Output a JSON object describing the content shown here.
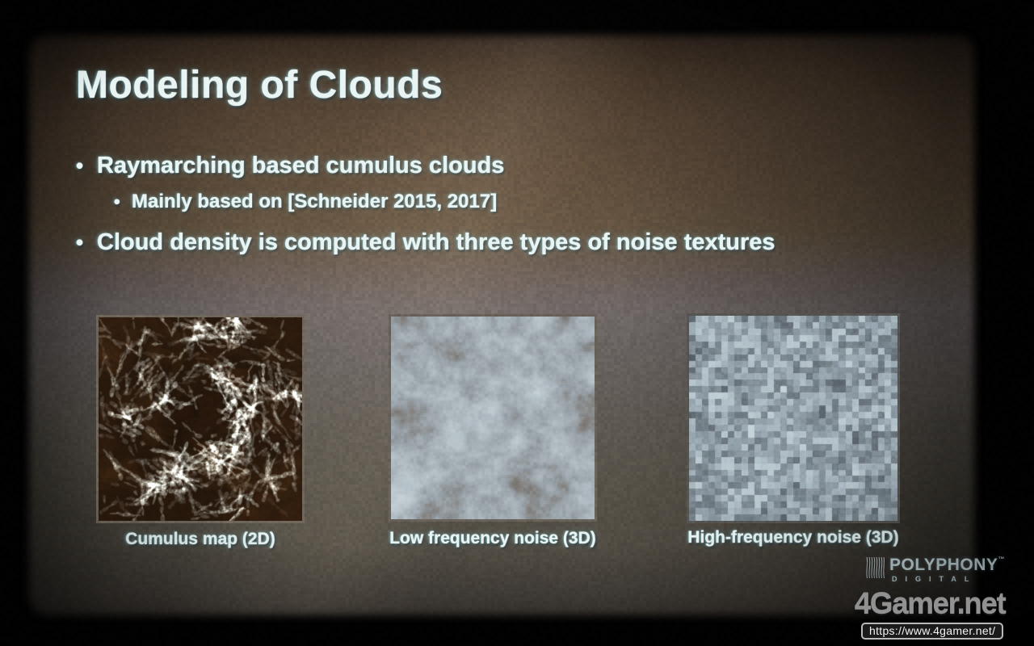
{
  "slide": {
    "title": "Modeling of Clouds",
    "bullets": [
      {
        "marker": "•",
        "level": 1,
        "text": "Raymarching based cumulus clouds"
      },
      {
        "marker": "•",
        "level": 2,
        "text": "Mainly based on [Schneider 2015, 2017]"
      },
      {
        "marker": "•",
        "level": 1,
        "text": "Cloud density is computed with three types of noise textures"
      }
    ],
    "textures": [
      {
        "id": "cumulus-map-2d",
        "caption": "Cumulus map (2D)",
        "style": "dark-wispy-cloud-map"
      },
      {
        "id": "low-frequency-noise-3d",
        "caption": "Low frequency noise (3D)",
        "style": "soft-blurry-noise"
      },
      {
        "id": "high-frequency-noise-3d",
        "caption": "High-frequency noise (3D)",
        "style": "pixelated-block-noise"
      }
    ]
  },
  "branding": {
    "polyphony": {
      "icon": "polyphony-stripes-icon",
      "name": "POLYPHONY",
      "trademark": "™",
      "subtitle": "DIGITAL"
    },
    "watermark": {
      "logo_text": "4Gamer.net",
      "url_text": "https://www.4gamer.net/"
    }
  },
  "colors": {
    "slide_text": "#eaf5f3",
    "background_warm_brown": "#5a4a3b",
    "light_band": "#6f6867",
    "polyphony_logo": "#c6d9de",
    "watermark_gray": "#919191",
    "cumulus_bg_dark": "#1f1309",
    "cumulus_bg_edge": "#2e1c0e",
    "cumulus_wisp": "#d7e8e8",
    "lowfreq_dark": "#55483f",
    "lowfreq_mid": "#97a0a6",
    "lowfreq_light": "#d6e2e6",
    "highfreq_dark": "#4e565e",
    "highfreq_mid": "#96a4ae",
    "highfreq_light": "#ccdae0"
  }
}
